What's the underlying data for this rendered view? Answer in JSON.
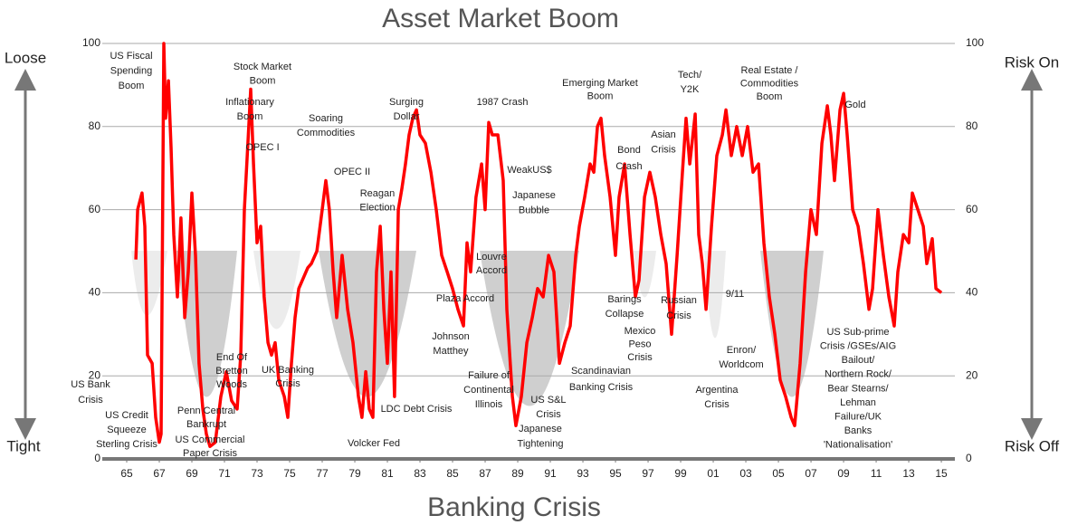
{
  "chart_data": {
    "type": "line",
    "title": "Asset Market Boom",
    "x_label": "Banking Crisis",
    "left_top_label": "Loose",
    "left_bottom_label": "Tight",
    "right_top_label": "Risk On",
    "right_bottom_label": "Risk Off",
    "color": "#ff0000",
    "grid": true,
    "xlim": [
      1963.5,
      2015.83
    ],
    "ylim": [
      0,
      100
    ],
    "yticks": [
      0,
      20,
      40,
      60,
      80,
      100
    ],
    "xticks": [
      {
        "value": 1965,
        "label": "65"
      },
      {
        "value": 1967,
        "label": "67"
      },
      {
        "value": 1969,
        "label": "69"
      },
      {
        "value": 1971,
        "label": "71"
      },
      {
        "value": 1973,
        "label": "73"
      },
      {
        "value": 1975,
        "label": "75"
      },
      {
        "value": 1977,
        "label": "77"
      },
      {
        "value": 1979,
        "label": "79"
      },
      {
        "value": 1981,
        "label": "81"
      },
      {
        "value": 1983,
        "label": "83"
      },
      {
        "value": 1985,
        "label": "85"
      },
      {
        "value": 1987,
        "label": "87"
      },
      {
        "value": 1989,
        "label": "89"
      },
      {
        "value": 1991,
        "label": "91"
      },
      {
        "value": 1993,
        "label": "93"
      },
      {
        "value": 1995,
        "label": "95"
      },
      {
        "value": 1997,
        "label": "97"
      },
      {
        "value": 1999,
        "label": "99"
      },
      {
        "value": 2001,
        "label": "01"
      },
      {
        "value": 2003,
        "label": "03"
      },
      {
        "value": 2005,
        "label": "05"
      },
      {
        "value": 2007,
        "label": "07"
      },
      {
        "value": 2009,
        "label": "09"
      },
      {
        "value": 2011,
        "label": "11"
      },
      {
        "value": 2013,
        "label": "13"
      },
      {
        "value": 2015,
        "label": "15"
      }
    ],
    "x": [
      1965.56,
      1965.67,
      1965.94,
      1966.11,
      1966.28,
      1966.56,
      1966.78,
      1967.0,
      1967.11,
      1967.28,
      1967.39,
      1967.56,
      1967.72,
      1967.89,
      1968.11,
      1968.33,
      1968.56,
      1968.78,
      1969.0,
      1969.22,
      1969.44,
      1969.67,
      1969.89,
      1970.11,
      1970.44,
      1970.78,
      1971.11,
      1971.44,
      1971.78,
      1972.0,
      1972.22,
      1972.44,
      1972.61,
      1972.78,
      1973.0,
      1973.22,
      1973.44,
      1973.67,
      1973.89,
      1974.11,
      1974.33,
      1974.67,
      1974.89,
      1975.11,
      1975.33,
      1975.56,
      1975.78,
      1976.11,
      1976.33,
      1976.67,
      1977.0,
      1977.22,
      1977.44,
      1977.67,
      1977.89,
      1978.22,
      1978.56,
      1978.89,
      1979.22,
      1979.44,
      1979.67,
      1979.89,
      1980.11,
      1980.33,
      1980.56,
      1980.78,
      1981.0,
      1981.22,
      1981.44,
      1981.67,
      1981.89,
      1982.11,
      1982.33,
      1982.56,
      1982.78,
      1983.0,
      1983.33,
      1983.67,
      1984.0,
      1984.33,
      1984.67,
      1985.0,
      1985.33,
      1985.67,
      1985.89,
      1986.11,
      1986.44,
      1986.78,
      1987.0,
      1987.22,
      1987.44,
      1987.78,
      1988.11,
      1988.33,
      1988.67,
      1988.89,
      1989.22,
      1989.56,
      1989.89,
      1990.22,
      1990.56,
      1990.89,
      1991.22,
      1991.56,
      1991.89,
      1992.22,
      1992.56,
      1992.78,
      1993.11,
      1993.44,
      1993.67,
      1993.89,
      1994.11,
      1994.33,
      1994.67,
      1995.0,
      1995.22,
      1995.56,
      1995.89,
      1996.22,
      1996.44,
      1996.78,
      1997.11,
      1997.44,
      1997.78,
      1998.11,
      1998.44,
      1998.78,
      1999.11,
      1999.33,
      1999.56,
      1999.89,
      2000.11,
      2000.33,
      2000.56,
      2000.89,
      2001.22,
      2001.56,
      2001.78,
      2002.11,
      2002.44,
      2002.78,
      2003.11,
      2003.44,
      2003.78,
      2004.11,
      2004.44,
      2004.78,
      2005.11,
      2005.44,
      2005.78,
      2006.0,
      2006.33,
      2006.67,
      2007.0,
      2007.33,
      2007.67,
      2008.0,
      2008.22,
      2008.44,
      2008.78,
      2009.0,
      2009.22,
      2009.56,
      2009.89,
      2010.22,
      2010.56,
      2010.78,
      2011.11,
      2011.44,
      2011.78,
      2012.11,
      2012.33,
      2012.67,
      2013.0,
      2013.22,
      2013.56,
      2013.89,
      2014.11,
      2014.44,
      2014.67,
      2015.0
    ],
    "values": [
      48,
      60,
      64,
      56,
      25,
      23,
      10,
      4,
      6,
      100,
      82,
      91,
      75,
      54,
      39,
      58,
      34,
      45,
      64,
      49,
      23,
      12,
      6,
      3,
      4,
      15,
      21,
      14,
      12,
      25,
      60,
      76,
      89,
      71,
      52,
      56,
      39,
      28,
      25,
      28,
      19,
      15,
      10,
      23,
      34,
      41,
      43,
      46,
      47,
      50,
      60,
      67,
      60,
      45,
      34,
      49,
      36,
      28,
      15,
      10,
      21,
      12,
      10,
      45,
      56,
      36,
      23,
      45,
      15,
      60,
      65,
      71,
      78,
      82,
      84,
      78,
      76,
      69,
      60,
      49,
      45,
      41,
      36,
      32,
      52,
      45,
      63,
      71,
      60,
      81,
      78,
      78,
      67,
      36,
      15,
      8,
      15,
      28,
      34,
      41,
      39,
      49,
      45,
      23,
      28,
      32,
      49,
      56,
      63,
      71,
      69,
      80,
      82,
      73,
      63,
      49,
      63,
      71,
      54,
      39,
      43,
      63,
      69,
      63,
      54,
      47,
      30,
      49,
      69,
      82,
      71,
      83,
      54,
      47,
      36,
      56,
      73,
      78,
      84,
      73,
      80,
      73,
      80,
      69,
      71,
      52,
      39,
      30,
      19,
      15,
      10,
      8,
      23,
      45,
      60,
      54,
      76,
      85,
      78,
      67,
      84,
      88,
      78,
      60,
      56,
      47,
      36,
      41,
      60,
      49,
      39,
      32,
      45,
      54,
      52,
      64,
      60,
      56,
      47,
      53,
      41,
      40
    ],
    "annotations": [
      {
        "lines": [
          "US Fiscal",
          "Spending",
          "Boom"
        ]
      },
      {
        "lines": [
          "Stock Market",
          "Boom"
        ]
      },
      {
        "lines": [
          "Inflationary",
          "Boom"
        ]
      },
      {
        "lines": [
          "OPEC I"
        ]
      },
      {
        "lines": [
          "Soaring",
          "Commodities"
        ]
      },
      {
        "lines": [
          "OPEC II"
        ]
      },
      {
        "lines": [
          "Reagan",
          "Election"
        ]
      },
      {
        "lines": [
          "Surging",
          "Dollar"
        ]
      },
      {
        "lines": [
          "1987 Crash"
        ]
      },
      {
        "lines": [
          "WeakUS$"
        ]
      },
      {
        "lines": [
          "Japanese",
          "Bubble"
        ]
      },
      {
        "lines": [
          "Louvre",
          "Accord"
        ]
      },
      {
        "lines": [
          "Plaza Accord"
        ]
      },
      {
        "lines": [
          "Johnson",
          "Matthey"
        ]
      },
      {
        "lines": [
          "Failure of",
          "Continental",
          "Illinois"
        ]
      },
      {
        "lines": [
          "US S&L",
          "Crisis"
        ]
      },
      {
        "lines": [
          "Japanese",
          "Tightening"
        ]
      },
      {
        "lines": [
          "Scandinavian",
          "Banking Crisis"
        ]
      },
      {
        "lines": [
          "Emerging Market",
          "Boom"
        ]
      },
      {
        "lines": [
          "Bond",
          "Crash"
        ]
      },
      {
        "lines": [
          "Asian",
          "Crisis"
        ]
      },
      {
        "lines": [
          "Tech/",
          "Y2K"
        ]
      },
      {
        "lines": [
          "Real Estate /",
          "Commodities",
          "Boom"
        ]
      },
      {
        "lines": [
          "Gold"
        ]
      },
      {
        "lines": [
          "Barings",
          "Collapse"
        ]
      },
      {
        "lines": [
          "Mexico",
          "Peso",
          "Crisis"
        ]
      },
      {
        "lines": [
          "Russian",
          "Crisis"
        ]
      },
      {
        "lines": [
          "9/11"
        ]
      },
      {
        "lines": [
          "Enron/",
          "Worldcom"
        ]
      },
      {
        "lines": [
          "Argentina",
          "Crisis"
        ]
      },
      {
        "lines": [
          "US Sub-prime",
          "Crisis /GSEs/AIG",
          "Bailout/",
          "Northern Rock/",
          "Bear Stearns/",
          "Lehman",
          "Failure/UK",
          "Banks",
          "'Nationalisation'"
        ]
      },
      {
        "lines": [
          "US Bank",
          "Crisis"
        ]
      },
      {
        "lines": [
          "US Credit",
          "Squeeze",
          "Sterling Crisis"
        ]
      },
      {
        "lines": [
          "Penn Central",
          "Bankrupt"
        ]
      },
      {
        "lines": [
          "US Commercial",
          "Paper Crisis"
        ]
      },
      {
        "lines": [
          "End Of",
          "Bretton",
          "Woods"
        ]
      },
      {
        "lines": [
          "UK Banking",
          "Crisis"
        ]
      },
      {
        "lines": [
          "LDC Debt Crisis"
        ]
      },
      {
        "lines": [
          "Volcker Fed"
        ]
      }
    ]
  }
}
